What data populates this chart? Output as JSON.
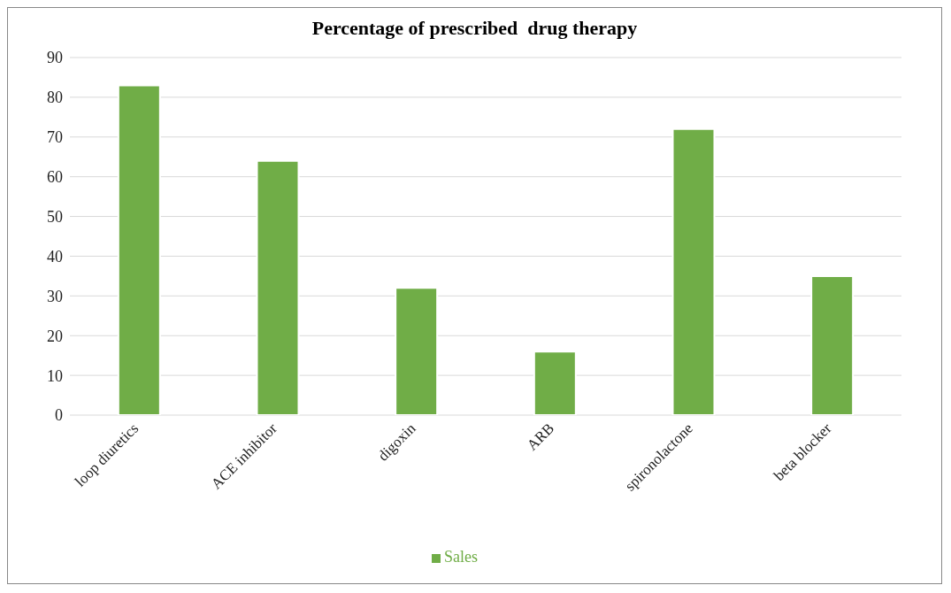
{
  "chart_data": {
    "type": "bar",
    "title": "Percentage of prescribed  drug therapy",
    "categories": [
      "loop diuretics",
      "ACE inhibitor",
      "digoxin",
      "ARB",
      "spironolactone",
      "beta blocker"
    ],
    "series": [
      {
        "name": "Sales",
        "color": "#70ad47",
        "values": [
          83,
          64,
          32,
          16,
          72,
          35
        ]
      }
    ],
    "ylim": [
      0,
      90
    ],
    "yticks": [
      0,
      10,
      20,
      30,
      40,
      50,
      60,
      70,
      80,
      90
    ],
    "grid": "y",
    "legend": "bottom"
  }
}
